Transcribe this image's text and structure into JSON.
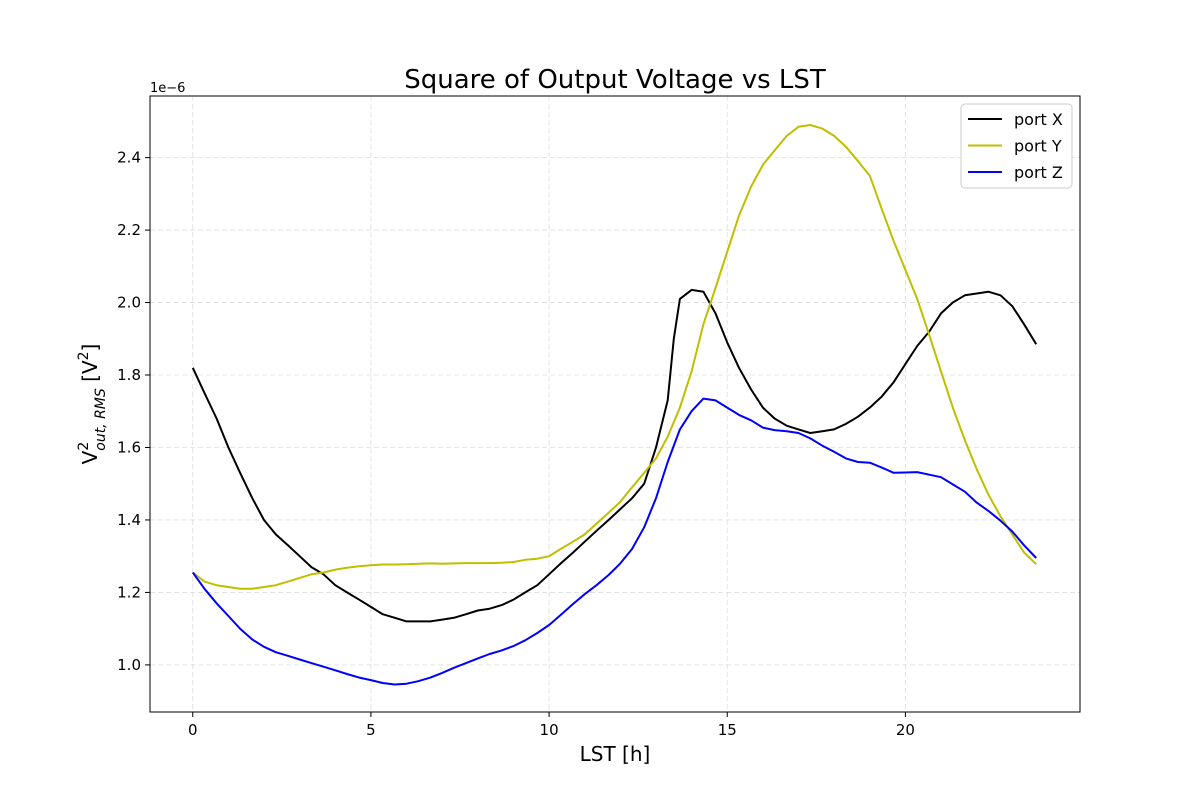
{
  "chart_data": {
    "type": "line",
    "title": "Square of Output Voltage vs LST",
    "xlabel": "LST [h]",
    "ylabel": {
      "base": "V",
      "sup": "2",
      "sub": "out, RMS",
      "unit_open": " [V",
      "unit_sup": "2",
      "unit_close": "]"
    },
    "y_offset_label": "1e−6",
    "xlim": [
      -1.2,
      24.9
    ],
    "ylim": [
      0.87,
      2.57
    ],
    "x_ticks": [
      0,
      5,
      10,
      15,
      20
    ],
    "y_ticks": [
      1.0,
      1.2,
      1.4,
      1.6,
      1.8,
      2.0,
      2.2,
      2.4
    ],
    "grid": true,
    "legend_position": "top-right",
    "series": [
      {
        "name": "port X",
        "color": "#000000",
        "points": [
          [
            0,
            1.82
          ],
          [
            0.33,
            1.75
          ],
          [
            0.67,
            1.68
          ],
          [
            1.0,
            1.6
          ],
          [
            1.33,
            1.53
          ],
          [
            1.67,
            1.46
          ],
          [
            2.0,
            1.4
          ],
          [
            2.33,
            1.36
          ],
          [
            2.67,
            1.33
          ],
          [
            3.0,
            1.3
          ],
          [
            3.33,
            1.27
          ],
          [
            3.67,
            1.25
          ],
          [
            4.0,
            1.22
          ],
          [
            4.33,
            1.2
          ],
          [
            4.67,
            1.18
          ],
          [
            5.0,
            1.16
          ],
          [
            5.33,
            1.14
          ],
          [
            5.67,
            1.13
          ],
          [
            6.0,
            1.12
          ],
          [
            6.33,
            1.12
          ],
          [
            6.67,
            1.12
          ],
          [
            7.0,
            1.125
          ],
          [
            7.33,
            1.13
          ],
          [
            7.67,
            1.14
          ],
          [
            8.0,
            1.15
          ],
          [
            8.33,
            1.155
          ],
          [
            8.67,
            1.165
          ],
          [
            9.0,
            1.18
          ],
          [
            9.33,
            1.2
          ],
          [
            9.67,
            1.22
          ],
          [
            10.0,
            1.25
          ],
          [
            10.33,
            1.28
          ],
          [
            10.67,
            1.31
          ],
          [
            11.0,
            1.34
          ],
          [
            11.33,
            1.37
          ],
          [
            11.67,
            1.4
          ],
          [
            12.0,
            1.43
          ],
          [
            12.33,
            1.46
          ],
          [
            12.67,
            1.5
          ],
          [
            13.0,
            1.6
          ],
          [
            13.33,
            1.73
          ],
          [
            13.5,
            1.9
          ],
          [
            13.67,
            2.01
          ],
          [
            14.0,
            2.035
          ],
          [
            14.33,
            2.03
          ],
          [
            14.67,
            1.97
          ],
          [
            15.0,
            1.89
          ],
          [
            15.33,
            1.82
          ],
          [
            15.67,
            1.76
          ],
          [
            16.0,
            1.71
          ],
          [
            16.33,
            1.68
          ],
          [
            16.67,
            1.66
          ],
          [
            17.0,
            1.65
          ],
          [
            17.33,
            1.64
          ],
          [
            17.67,
            1.645
          ],
          [
            18.0,
            1.65
          ],
          [
            18.33,
            1.665
          ],
          [
            18.67,
            1.685
          ],
          [
            19.0,
            1.71
          ],
          [
            19.33,
            1.74
          ],
          [
            19.67,
            1.78
          ],
          [
            20.0,
            1.83
          ],
          [
            20.33,
            1.88
          ],
          [
            20.67,
            1.92
          ],
          [
            21.0,
            1.97
          ],
          [
            21.33,
            2.0
          ],
          [
            21.67,
            2.02
          ],
          [
            22.0,
            2.025
          ],
          [
            22.33,
            2.03
          ],
          [
            22.67,
            2.02
          ],
          [
            23.0,
            1.99
          ],
          [
            23.33,
            1.94
          ],
          [
            23.67,
            1.885
          ]
        ]
      },
      {
        "name": "port Y",
        "color": "#bfbf00",
        "points": [
          [
            0,
            1.255
          ],
          [
            0.33,
            1.23
          ],
          [
            0.67,
            1.22
          ],
          [
            1.0,
            1.215
          ],
          [
            1.33,
            1.21
          ],
          [
            1.67,
            1.21
          ],
          [
            2.0,
            1.215
          ],
          [
            2.33,
            1.22
          ],
          [
            2.67,
            1.23
          ],
          [
            3.0,
            1.24
          ],
          [
            3.33,
            1.25
          ],
          [
            3.67,
            1.255
          ],
          [
            4.0,
            1.263
          ],
          [
            4.33,
            1.268
          ],
          [
            4.67,
            1.272
          ],
          [
            5.0,
            1.275
          ],
          [
            5.33,
            1.277
          ],
          [
            5.67,
            1.277
          ],
          [
            6.0,
            1.278
          ],
          [
            6.33,
            1.279
          ],
          [
            6.67,
            1.28
          ],
          [
            7.0,
            1.279
          ],
          [
            7.33,
            1.28
          ],
          [
            7.67,
            1.281
          ],
          [
            8.0,
            1.281
          ],
          [
            8.33,
            1.281
          ],
          [
            8.67,
            1.282
          ],
          [
            9.0,
            1.284
          ],
          [
            9.33,
            1.29
          ],
          [
            9.67,
            1.293
          ],
          [
            10.0,
            1.3
          ],
          [
            10.33,
            1.32
          ],
          [
            10.67,
            1.34
          ],
          [
            11.0,
            1.36
          ],
          [
            11.33,
            1.39
          ],
          [
            11.67,
            1.42
          ],
          [
            12.0,
            1.45
          ],
          [
            12.33,
            1.49
          ],
          [
            12.67,
            1.53
          ],
          [
            13.0,
            1.57
          ],
          [
            13.33,
            1.63
          ],
          [
            13.67,
            1.71
          ],
          [
            14.0,
            1.81
          ],
          [
            14.33,
            1.94
          ],
          [
            14.67,
            2.04
          ],
          [
            15.0,
            2.14
          ],
          [
            15.33,
            2.24
          ],
          [
            15.67,
            2.32
          ],
          [
            16.0,
            2.38
          ],
          [
            16.33,
            2.42
          ],
          [
            16.67,
            2.46
          ],
          [
            17.0,
            2.485
          ],
          [
            17.33,
            2.49
          ],
          [
            17.67,
            2.48
          ],
          [
            18.0,
            2.46
          ],
          [
            18.33,
            2.43
          ],
          [
            18.67,
            2.39
          ],
          [
            19.0,
            2.35
          ],
          [
            19.33,
            2.26
          ],
          [
            19.67,
            2.17
          ],
          [
            20.0,
            2.09
          ],
          [
            20.33,
            2.01
          ],
          [
            20.67,
            1.91
          ],
          [
            21.0,
            1.81
          ],
          [
            21.33,
            1.71
          ],
          [
            21.67,
            1.62
          ],
          [
            22.0,
            1.54
          ],
          [
            22.33,
            1.47
          ],
          [
            22.67,
            1.41
          ],
          [
            23.0,
            1.36
          ],
          [
            23.33,
            1.31
          ],
          [
            23.67,
            1.278
          ]
        ]
      },
      {
        "name": "port Z",
        "color": "#0000ff",
        "points": [
          [
            0,
            1.255
          ],
          [
            0.33,
            1.21
          ],
          [
            0.67,
            1.17
          ],
          [
            1.0,
            1.135
          ],
          [
            1.33,
            1.1
          ],
          [
            1.67,
            1.07
          ],
          [
            2.0,
            1.05
          ],
          [
            2.33,
            1.035
          ],
          [
            2.67,
            1.025
          ],
          [
            3.0,
            1.015
          ],
          [
            3.33,
            1.005
          ],
          [
            3.67,
            0.995
          ],
          [
            4.0,
            0.985
          ],
          [
            4.33,
            0.975
          ],
          [
            4.67,
            0.965
          ],
          [
            5.0,
            0.958
          ],
          [
            5.33,
            0.95
          ],
          [
            5.67,
            0.946
          ],
          [
            6.0,
            0.948
          ],
          [
            6.33,
            0.955
          ],
          [
            6.67,
            0.965
          ],
          [
            7.0,
            0.978
          ],
          [
            7.33,
            0.992
          ],
          [
            7.67,
            1.005
          ],
          [
            8.0,
            1.018
          ],
          [
            8.33,
            1.03
          ],
          [
            8.67,
            1.04
          ],
          [
            9.0,
            1.052
          ],
          [
            9.33,
            1.068
          ],
          [
            9.67,
            1.088
          ],
          [
            10.0,
            1.11
          ],
          [
            10.33,
            1.138
          ],
          [
            10.67,
            1.168
          ],
          [
            11.0,
            1.195
          ],
          [
            11.33,
            1.22
          ],
          [
            11.67,
            1.248
          ],
          [
            12.0,
            1.28
          ],
          [
            12.33,
            1.32
          ],
          [
            12.67,
            1.38
          ],
          [
            13.0,
            1.46
          ],
          [
            13.33,
            1.56
          ],
          [
            13.67,
            1.65
          ],
          [
            14.0,
            1.7
          ],
          [
            14.33,
            1.735
          ],
          [
            14.67,
            1.73
          ],
          [
            15.0,
            1.71
          ],
          [
            15.33,
            1.69
          ],
          [
            15.67,
            1.675
          ],
          [
            16.0,
            1.655
          ],
          [
            16.33,
            1.648
          ],
          [
            16.67,
            1.645
          ],
          [
            17.0,
            1.64
          ],
          [
            17.33,
            1.625
          ],
          [
            17.67,
            1.605
          ],
          [
            18.0,
            1.588
          ],
          [
            18.33,
            1.57
          ],
          [
            18.67,
            1.56
          ],
          [
            19.0,
            1.558
          ],
          [
            19.33,
            1.545
          ],
          [
            19.67,
            1.53
          ],
          [
            20.0,
            1.531
          ],
          [
            20.33,
            1.532
          ],
          [
            20.67,
            1.525
          ],
          [
            21.0,
            1.518
          ],
          [
            21.33,
            1.498
          ],
          [
            21.67,
            1.478
          ],
          [
            22.0,
            1.448
          ],
          [
            22.33,
            1.425
          ],
          [
            22.67,
            1.398
          ],
          [
            23.0,
            1.368
          ],
          [
            23.33,
            1.33
          ],
          [
            23.67,
            1.295
          ]
        ]
      }
    ]
  }
}
